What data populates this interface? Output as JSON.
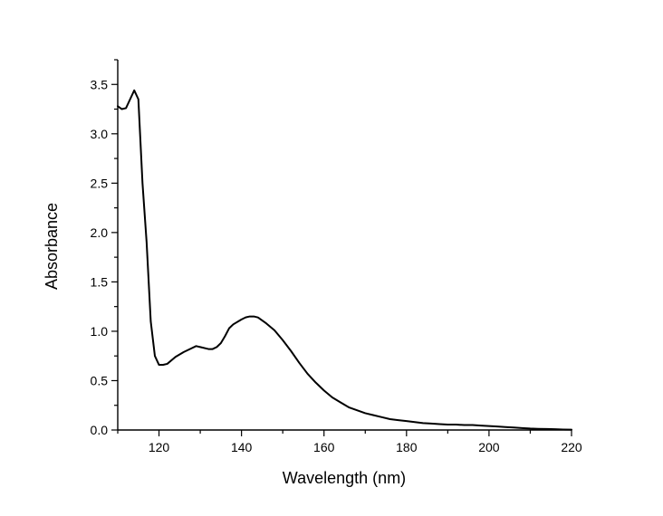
{
  "chart_data": {
    "type": "line",
    "title": "",
    "xlabel": "Wavelength (nm)",
    "ylabel": "Absorbance",
    "xlim": [
      110,
      220
    ],
    "ylim": [
      0,
      3.75
    ],
    "x_ticks": [
      120,
      140,
      160,
      180,
      200,
      220
    ],
    "x_tick_labels": [
      "120",
      "140",
      "160",
      "180",
      "200",
      "220"
    ],
    "y_ticks": [
      0,
      0.5,
      1.0,
      1.5,
      2.0,
      2.5,
      3.0,
      3.5
    ],
    "y_tick_labels": [
      "0.0",
      "0.5",
      "1.0",
      "1.5",
      "2.0",
      "2.5",
      "3.0",
      "3.5"
    ],
    "grid": false,
    "legend": "none",
    "series": [
      {
        "color": "#000000",
        "x": [
          110,
          111,
          112,
          113,
          114,
          115,
          116,
          117,
          118,
          119,
          120,
          121,
          122,
          124,
          126,
          128,
          129,
          130,
          132,
          133,
          134,
          135,
          136,
          137,
          138,
          140,
          141,
          142,
          143,
          144,
          146,
          148,
          150,
          152,
          154,
          156,
          158,
          160,
          162,
          164,
          166,
          168,
          170,
          172,
          174,
          176,
          178,
          180,
          182,
          184,
          186,
          188,
          190,
          192,
          194,
          196,
          198,
          200,
          202,
          204,
          206,
          208,
          210,
          212,
          214,
          216,
          218,
          220
        ],
        "y": [
          3.28,
          3.25,
          3.26,
          3.35,
          3.44,
          3.35,
          2.5,
          1.9,
          1.1,
          0.75,
          0.66,
          0.66,
          0.67,
          0.74,
          0.79,
          0.83,
          0.85,
          0.84,
          0.82,
          0.82,
          0.84,
          0.88,
          0.95,
          1.03,
          1.07,
          1.12,
          1.14,
          1.15,
          1.15,
          1.14,
          1.08,
          1.01,
          0.91,
          0.8,
          0.68,
          0.57,
          0.48,
          0.4,
          0.33,
          0.28,
          0.23,
          0.2,
          0.17,
          0.15,
          0.13,
          0.11,
          0.1,
          0.09,
          0.08,
          0.07,
          0.065,
          0.06,
          0.055,
          0.055,
          0.05,
          0.05,
          0.045,
          0.04,
          0.035,
          0.03,
          0.025,
          0.02,
          0.015,
          0.012,
          0.01,
          0.008,
          0.005,
          0.003
        ]
      }
    ]
  }
}
